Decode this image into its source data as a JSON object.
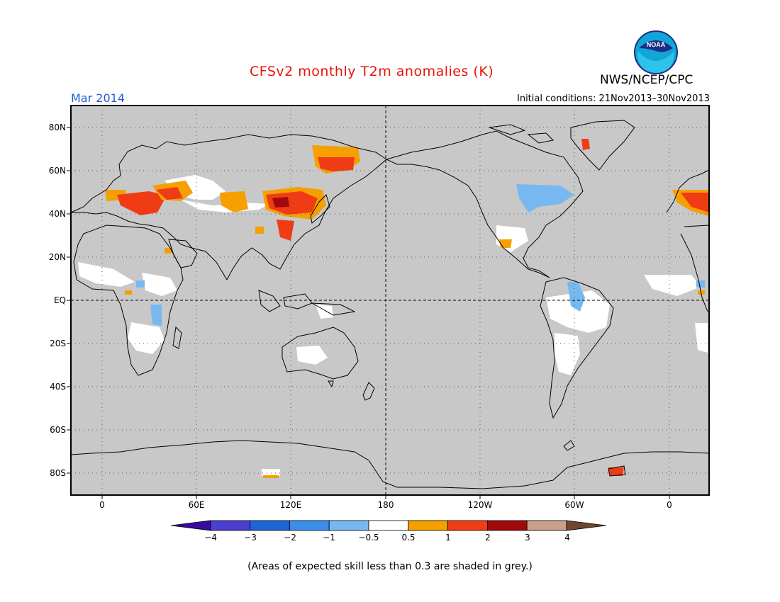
{
  "header": {
    "title": "CFSv2 monthly T2m anomalies (K)",
    "month": "Mar 2014",
    "initial_conditions": "Initial conditions: 21Nov2013–30Nov2013",
    "agency": "NWS/NCEP/CPC",
    "logo_text": "NOAA"
  },
  "colors": {
    "title": "#e8140a",
    "month": "#1e5ad2",
    "ocean_grey": "#c8c8c8",
    "land_white": "#ffffff",
    "coast": "#000000"
  },
  "map": {
    "lat_labels": [
      "80N",
      "60N",
      "40N",
      "20N",
      "EQ",
      "20S",
      "40S",
      "60S",
      "80S"
    ],
    "lon_labels": [
      "0",
      "60E",
      "120E",
      "180",
      "120W",
      "60W",
      "0"
    ],
    "gridlines": "dotted"
  },
  "colorbar": {
    "colors": [
      "#3a0a9c",
      "#4b3fcf",
      "#1f64d3",
      "#3c8ee8",
      "#78b8f0",
      "#ffffff",
      "#f5a000",
      "#f03c14",
      "#a00a0a",
      "#c8a08c",
      "#6e4632"
    ],
    "labels": [
      "−4",
      "−3",
      "−2",
      "−1",
      "−0.5",
      "0.5",
      "1",
      "2",
      "3",
      "4"
    ]
  },
  "footnote": "(Areas of expected skill less than 0.3 are shaded in grey.)"
}
